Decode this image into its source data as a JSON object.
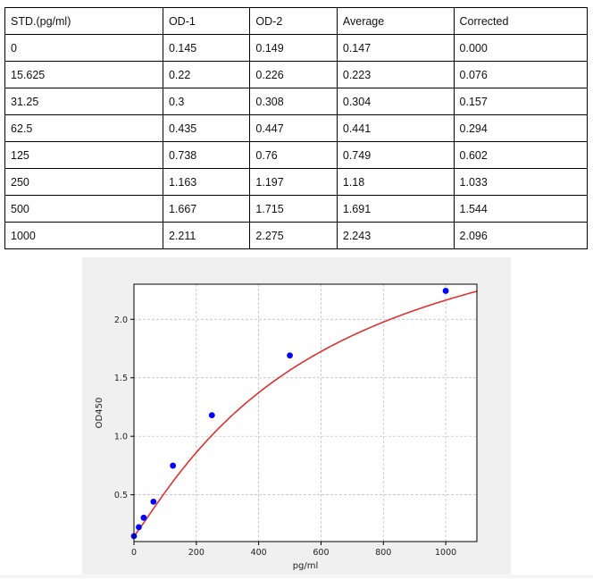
{
  "table": {
    "headers": [
      "STD.(pg/ml)",
      "OD-1",
      "OD-2",
      "Average",
      "Corrected"
    ],
    "rows": [
      [
        "0",
        "0.145",
        "0.149",
        "0.147",
        "0.000"
      ],
      [
        "15.625",
        "0.22",
        "0.226",
        "0.223",
        "0.076"
      ],
      [
        "31.25",
        "0.3",
        "0.308",
        "0.304",
        "0.157"
      ],
      [
        "62.5",
        "0.435",
        "0.447",
        "0.441",
        "0.294"
      ],
      [
        "125",
        "0.738",
        "0.76",
        "0.749",
        "0.602"
      ],
      [
        "250",
        "1.163",
        "1.197",
        "1.18",
        "1.033"
      ],
      [
        "500",
        "1.667",
        "1.715",
        "1.691",
        "1.544"
      ],
      [
        "1000",
        "2.211",
        "2.275",
        "2.243",
        "2.096"
      ]
    ]
  },
  "chart_data": {
    "type": "scatter",
    "title": "",
    "xlabel": "pg/ml",
    "ylabel": "OD450",
    "xlim": [
      0,
      1100
    ],
    "ylim": [
      0.1,
      2.3
    ],
    "xticks": [
      0,
      200,
      400,
      600,
      800,
      1000
    ],
    "xtick_labels": [
      "0",
      "200",
      "400",
      "600",
      "800",
      "1000"
    ],
    "yticks": [
      0.5,
      1.0,
      1.5,
      2.0
    ],
    "ytick_labels": [
      "0.5",
      "1.0",
      "1.5",
      "2.0"
    ],
    "grid": true,
    "points": {
      "x": [
        0,
        15.625,
        31.25,
        62.5,
        125,
        250,
        500,
        1000
      ],
      "y": [
        0.147,
        0.223,
        0.304,
        0.441,
        0.749,
        1.18,
        1.691,
        2.243
      ]
    },
    "fit_curve": {
      "type": "4pl",
      "a": 0.149,
      "b": 1.12,
      "c": 600,
      "d": 3.3
    },
    "colors": {
      "points": "#0000ff",
      "curve": "#e03030",
      "grid": "#b8b8b8",
      "background": "#f0f0f0"
    }
  }
}
